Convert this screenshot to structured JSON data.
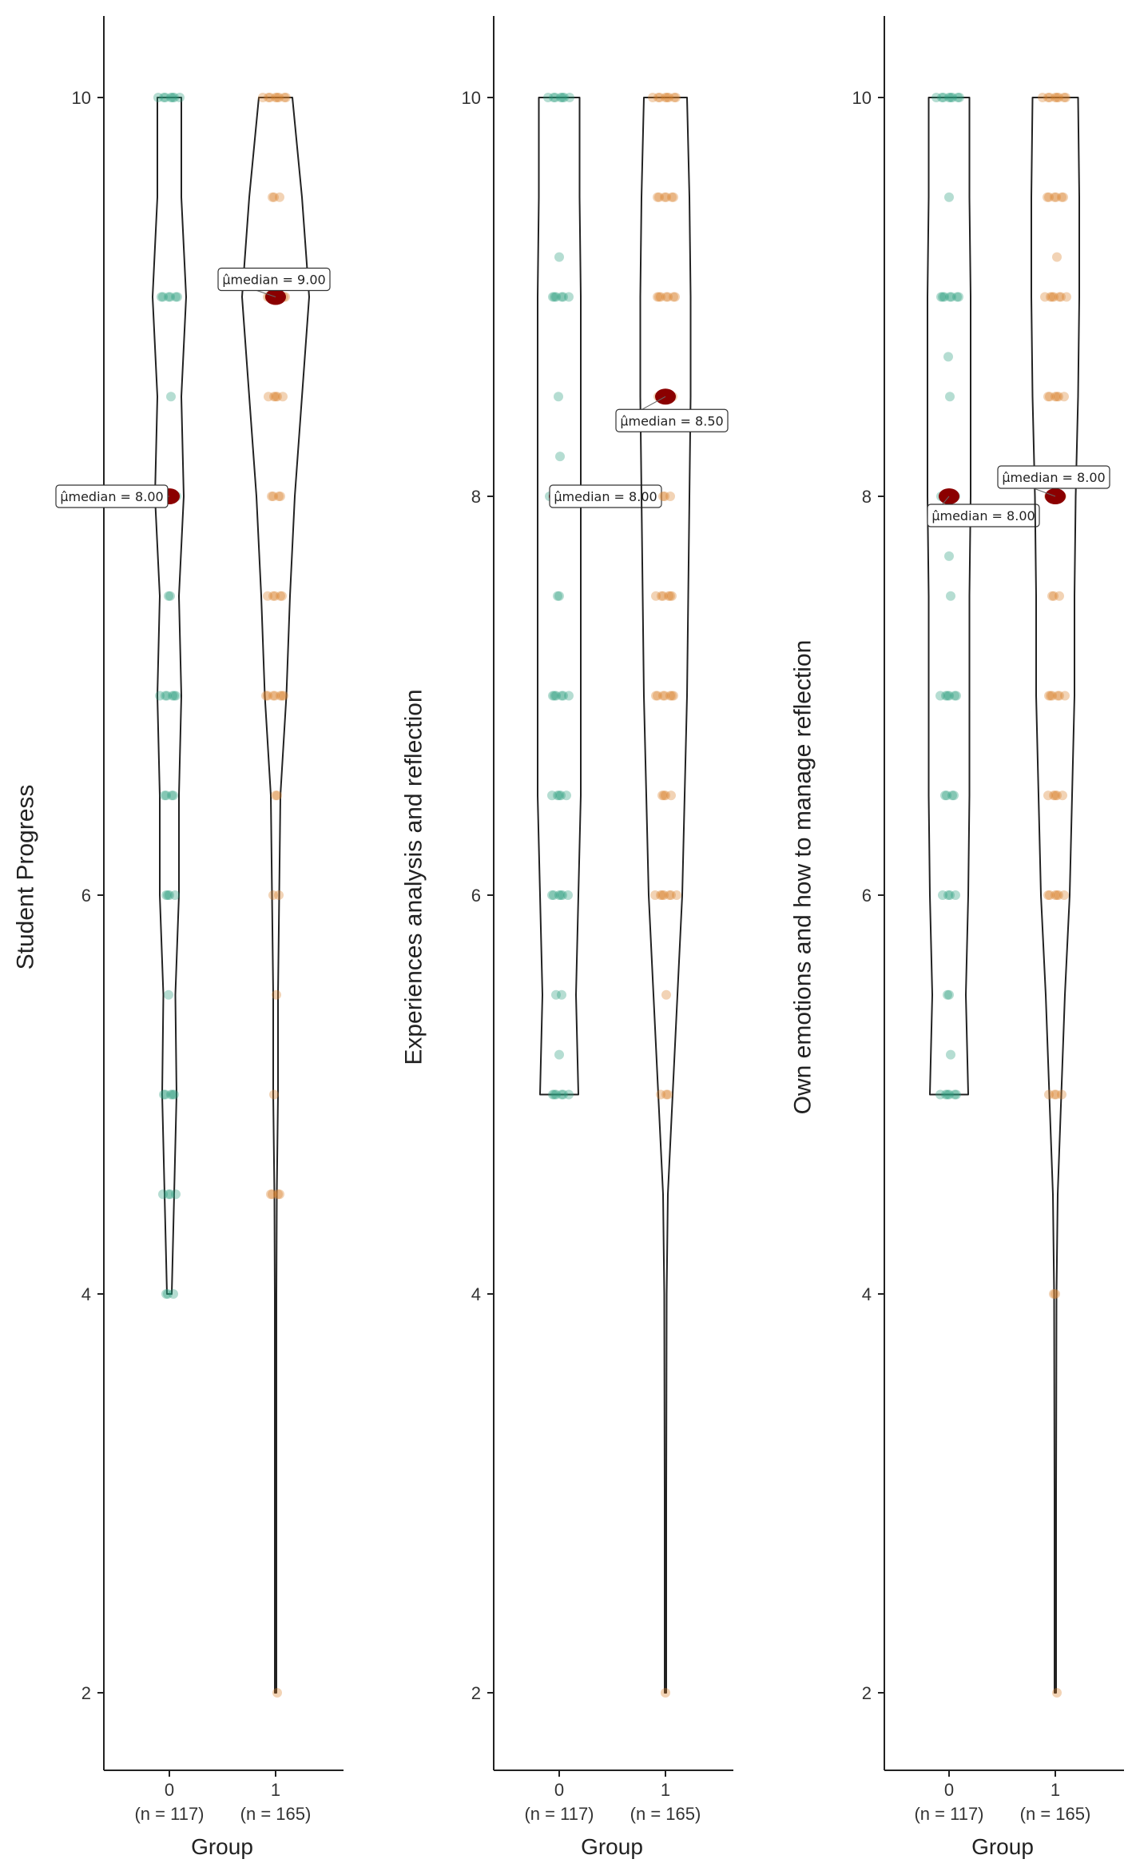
{
  "colors": {
    "group0": "#2a9d7f",
    "group1": "#d9822b",
    "median": "#8b0000",
    "axis": "#222222",
    "violin": "#222222"
  },
  "chart_data": [
    {
      "type": "violin",
      "ylabel": "Student Progress",
      "xlabel": "Group",
      "ylim": [
        1.6,
        10.4
      ],
      "yticks": [
        "2",
        "4",
        "6",
        "8",
        "10"
      ],
      "ytick_values": [
        2,
        4,
        6,
        8,
        10
      ],
      "grid": false,
      "categories": [
        {
          "name": "0",
          "n_label": "(n = 117)"
        },
        {
          "name": "1",
          "n_label": "(n = 165)"
        }
      ],
      "series": [
        {
          "group": "0",
          "median": 8.0,
          "median_label": "μ̂median = 8.00",
          "points": [
            {
              "y": 10,
              "count": 7
            },
            {
              "y": 9,
              "count": 6
            },
            {
              "y": 8.5,
              "count": 1
            },
            {
              "y": 8,
              "count": 6
            },
            {
              "y": 7.5,
              "count": 2
            },
            {
              "y": 7,
              "count": 6
            },
            {
              "y": 6.5,
              "count": 4
            },
            {
              "y": 6,
              "count": 4
            },
            {
              "y": 5.5,
              "count": 1
            },
            {
              "y": 5,
              "count": 5
            },
            {
              "y": 4.5,
              "count": 4
            },
            {
              "y": 4,
              "count": 3
            }
          ],
          "violin": [
            [
              4,
              0.02
            ],
            [
              4.5,
              0.04
            ],
            [
              5,
              0.06
            ],
            [
              5.5,
              0.05
            ],
            [
              6,
              0.08
            ],
            [
              6.5,
              0.08
            ],
            [
              7,
              0.1
            ],
            [
              7.5,
              0.08
            ],
            [
              8,
              0.12
            ],
            [
              8.5,
              0.1
            ],
            [
              9,
              0.14
            ],
            [
              9.5,
              0.1
            ],
            [
              10,
              0.1
            ]
          ]
        },
        {
          "group": "1",
          "median": 9.0,
          "median_label": "μ̂median = 9.00",
          "points": [
            {
              "y": 10,
              "count": 8
            },
            {
              "y": 9.5,
              "count": 3
            },
            {
              "y": 9,
              "count": 7
            },
            {
              "y": 8.5,
              "count": 5
            },
            {
              "y": 8,
              "count": 4
            },
            {
              "y": 7.5,
              "count": 5
            },
            {
              "y": 7,
              "count": 7
            },
            {
              "y": 6.5,
              "count": 2
            },
            {
              "y": 6,
              "count": 2
            },
            {
              "y": 5.5,
              "count": 1
            },
            {
              "y": 5,
              "count": 1
            },
            {
              "y": 4.5,
              "count": 4
            },
            {
              "y": 2,
              "count": 1
            }
          ],
          "violin": [
            [
              2,
              0.0
            ],
            [
              3,
              0.0
            ],
            [
              4,
              0.0
            ],
            [
              4.5,
              0.01
            ],
            [
              5,
              0.02
            ],
            [
              5.5,
              0.02
            ],
            [
              6,
              0.03
            ],
            [
              6.5,
              0.04
            ],
            [
              7,
              0.09
            ],
            [
              7.5,
              0.12
            ],
            [
              8,
              0.16
            ],
            [
              8.5,
              0.22
            ],
            [
              9,
              0.28
            ],
            [
              9.5,
              0.22
            ],
            [
              10,
              0.14
            ]
          ]
        }
      ]
    },
    {
      "type": "violin",
      "ylabel": "Experiences analysis and reflection",
      "xlabel": "Group",
      "ylim": [
        1.6,
        10.4
      ],
      "yticks": [
        "2",
        "4",
        "6",
        "8",
        "10"
      ],
      "ytick_values": [
        2,
        4,
        6,
        8,
        10
      ],
      "grid": false,
      "categories": [
        {
          "name": "0",
          "n_label": "(n = 117)"
        },
        {
          "name": "1",
          "n_label": "(n = 165)"
        }
      ],
      "series": [
        {
          "group": "0",
          "median": 8.0,
          "median_label": "μ̂median = 8.00",
          "points": [
            {
              "y": 10,
              "count": 7
            },
            {
              "y": 9.2,
              "count": 1
            },
            {
              "y": 9,
              "count": 6
            },
            {
              "y": 8.5,
              "count": 1
            },
            {
              "y": 8.2,
              "count": 1
            },
            {
              "y": 8,
              "count": 6
            },
            {
              "y": 7.5,
              "count": 2
            },
            {
              "y": 7,
              "count": 6
            },
            {
              "y": 6.5,
              "count": 5
            },
            {
              "y": 6,
              "count": 6
            },
            {
              "y": 5.5,
              "count": 2
            },
            {
              "y": 5.2,
              "count": 1
            },
            {
              "y": 5,
              "count": 6
            }
          ],
          "violin": [
            [
              5,
              0.16
            ],
            [
              5.5,
              0.14
            ],
            [
              6,
              0.16
            ],
            [
              6.5,
              0.18
            ],
            [
              7,
              0.18
            ],
            [
              7.5,
              0.18
            ],
            [
              8,
              0.18
            ],
            [
              8.5,
              0.18
            ],
            [
              9,
              0.18
            ],
            [
              9.5,
              0.17
            ],
            [
              10,
              0.17
            ]
          ]
        },
        {
          "group": "1",
          "median": 8.5,
          "median_label": "μ̂median = 8.50",
          "points": [
            {
              "y": 10,
              "count": 8
            },
            {
              "y": 9.5,
              "count": 6
            },
            {
              "y": 9,
              "count": 7
            },
            {
              "y": 8.5,
              "count": 5
            },
            {
              "y": 8,
              "count": 3
            },
            {
              "y": 7.5,
              "count": 6
            },
            {
              "y": 7,
              "count": 7
            },
            {
              "y": 6.5,
              "count": 4
            },
            {
              "y": 6,
              "count": 7
            },
            {
              "y": 5.5,
              "count": 1
            },
            {
              "y": 5,
              "count": 3
            },
            {
              "y": 2,
              "count": 1
            }
          ],
          "violin": [
            [
              2,
              0.0
            ],
            [
              3,
              0.0
            ],
            [
              4,
              0.01
            ],
            [
              4.5,
              0.02
            ],
            [
              5,
              0.06
            ],
            [
              5.5,
              0.1
            ],
            [
              6,
              0.14
            ],
            [
              6.5,
              0.16
            ],
            [
              7,
              0.18
            ],
            [
              7.5,
              0.19
            ],
            [
              8,
              0.2
            ],
            [
              8.5,
              0.21
            ],
            [
              9,
              0.21
            ],
            [
              9.5,
              0.2
            ],
            [
              10,
              0.18
            ]
          ]
        }
      ]
    },
    {
      "type": "violin",
      "ylabel": "Own emotions and how to manage reflection",
      "xlabel": "Group",
      "ylim": [
        1.6,
        10.4
      ],
      "yticks": [
        "2",
        "4",
        "6",
        "8",
        "10"
      ],
      "ytick_values": [
        2,
        4,
        6,
        8,
        10
      ],
      "grid": false,
      "categories": [
        {
          "name": "0",
          "n_label": "(n = 117)"
        },
        {
          "name": "1",
          "n_label": "(n = 165)"
        }
      ],
      "series": [
        {
          "group": "0",
          "median": 8.0,
          "median_label": "μ̂median = 8.00",
          "points": [
            {
              "y": 10,
              "count": 8
            },
            {
              "y": 9.5,
              "count": 1
            },
            {
              "y": 9,
              "count": 7
            },
            {
              "y": 8.7,
              "count": 1
            },
            {
              "y": 8.5,
              "count": 1
            },
            {
              "y": 8,
              "count": 5
            },
            {
              "y": 7.7,
              "count": 1
            },
            {
              "y": 7.5,
              "count": 1
            },
            {
              "y": 7,
              "count": 6
            },
            {
              "y": 6.5,
              "count": 4
            },
            {
              "y": 6,
              "count": 4
            },
            {
              "y": 5.5,
              "count": 2
            },
            {
              "y": 5.2,
              "count": 1
            },
            {
              "y": 5,
              "count": 6
            }
          ],
          "violin": [
            [
              5,
              0.16
            ],
            [
              5.5,
              0.14
            ],
            [
              6,
              0.16
            ],
            [
              6.5,
              0.17
            ],
            [
              7,
              0.17
            ],
            [
              7.5,
              0.17
            ],
            [
              8,
              0.18
            ],
            [
              8.5,
              0.18
            ],
            [
              9,
              0.18
            ],
            [
              9.5,
              0.17
            ],
            [
              10,
              0.17
            ]
          ]
        },
        {
          "group": "1",
          "median": 8.0,
          "median_label": "μ̂median = 8.00",
          "points": [
            {
              "y": 10,
              "count": 8
            },
            {
              "y": 9.5,
              "count": 6
            },
            {
              "y": 9.2,
              "count": 1
            },
            {
              "y": 9,
              "count": 7
            },
            {
              "y": 8.5,
              "count": 6
            },
            {
              "y": 8,
              "count": 4
            },
            {
              "y": 7.5,
              "count": 3
            },
            {
              "y": 7,
              "count": 6
            },
            {
              "y": 6.5,
              "count": 5
            },
            {
              "y": 6,
              "count": 6
            },
            {
              "y": 5,
              "count": 4
            },
            {
              "y": 4,
              "count": 2
            },
            {
              "y": 2,
              "count": 1
            }
          ],
          "violin": [
            [
              2,
              0.0
            ],
            [
              3,
              0.0
            ],
            [
              4,
              0.01
            ],
            [
              4.5,
              0.02
            ],
            [
              5,
              0.05
            ],
            [
              5.5,
              0.08
            ],
            [
              6,
              0.12
            ],
            [
              6.5,
              0.14
            ],
            [
              7,
              0.16
            ],
            [
              7.5,
              0.16
            ],
            [
              8,
              0.17
            ],
            [
              8.5,
              0.19
            ],
            [
              9,
              0.2
            ],
            [
              9.5,
              0.2
            ],
            [
              10,
              0.19
            ]
          ]
        }
      ]
    }
  ]
}
